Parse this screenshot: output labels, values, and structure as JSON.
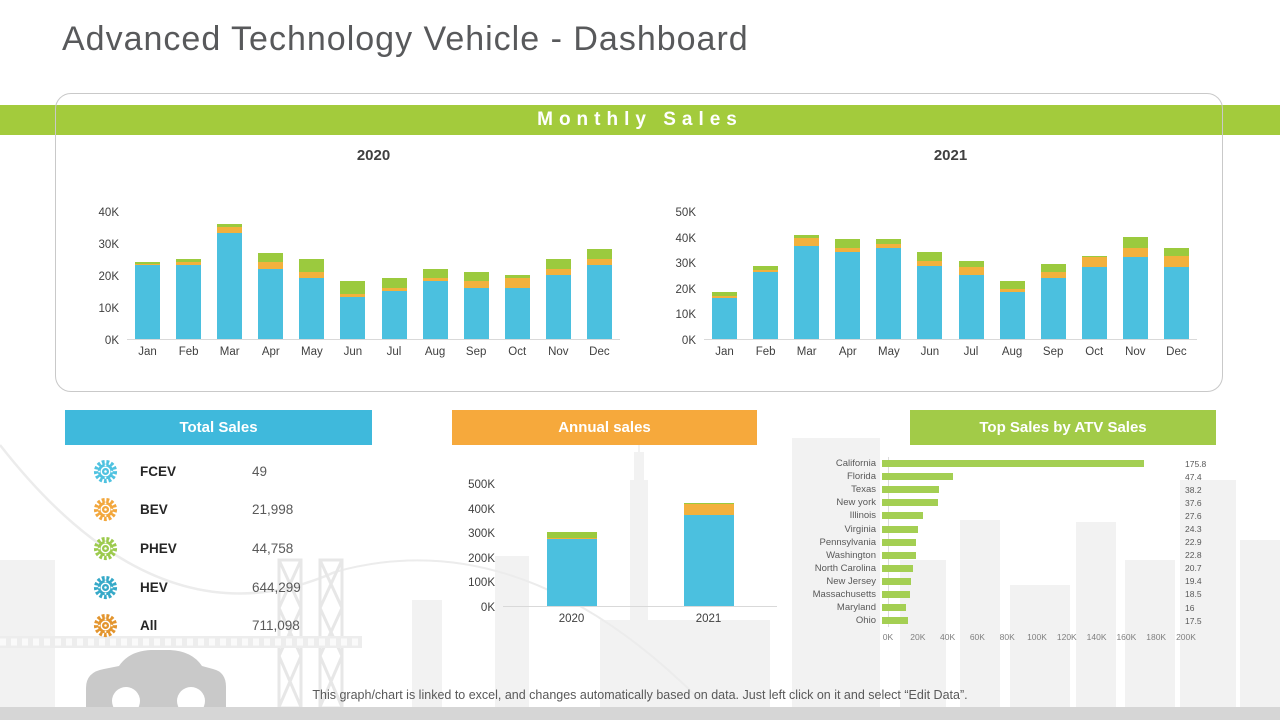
{
  "page": {
    "title": "Advanced Technology Vehicle - Dashboard",
    "footer": "This graph/chart is linked to excel, and changes automatically based on data. Just left click on it and select “Edit Data”."
  },
  "colors": {
    "band_green": "#a3cb3c",
    "header_blue": "#3fb9dc",
    "header_orange": "#f6a93c",
    "header_green": "#a2cb48",
    "bar_blue": "#4bc0df",
    "bar_orange": "#f2b13d",
    "bar_green": "#9bca3e",
    "hbar_green": "#a4cf53"
  },
  "monthly_panel": {
    "header": "Monthly Sales"
  },
  "total_panel": {
    "header": "Total Sales",
    "rows": [
      {
        "label": "FCEV",
        "value": "49",
        "icon": "wheel-icon",
        "color": "#4fc2e0"
      },
      {
        "label": "BEV",
        "value": "21,998",
        "icon": "wheel-icon",
        "color": "#f2a73d"
      },
      {
        "label": "PHEV",
        "value": "44,758",
        "icon": "wheel-icon",
        "color": "#9cca4d"
      },
      {
        "label": "HEV",
        "value": "644,299",
        "icon": "wheel-icon",
        "color": "#36a9c8"
      },
      {
        "label": "All",
        "value": "711,098",
        "icon": "wheel-icon",
        "color": "#e3952e"
      }
    ]
  },
  "annual_panel": {
    "header": "Annual sales"
  },
  "top_panel": {
    "header": "Top Sales by ATV Sales"
  },
  "chart_data": [
    {
      "id": "monthly-2020",
      "type": "bar",
      "stacked": true,
      "title": "2020",
      "unit": "thousands",
      "categories": [
        "Jan",
        "Feb",
        "Mar",
        "Apr",
        "May",
        "Jun",
        "Jul",
        "Aug",
        "Sep",
        "Oct",
        "Nov",
        "Dec"
      ],
      "series": [
        {
          "name": "blue",
          "color": "#4bc0df",
          "values": [
            23,
            23,
            33,
            22,
            19,
            13,
            15,
            18,
            16,
            16,
            20,
            23
          ]
        },
        {
          "name": "orange",
          "color": "#f2b13d",
          "values": [
            0.5,
            1,
            2,
            2,
            2,
            1,
            1,
            1,
            2,
            3,
            2,
            2
          ]
        },
        {
          "name": "green",
          "color": "#9bca3e",
          "values": [
            0.5,
            1,
            1,
            3,
            4,
            4,
            3,
            3,
            3,
            1,
            3,
            3
          ]
        }
      ],
      "yticks": [
        {
          "label": "0K",
          "value": 0
        },
        {
          "label": "10K",
          "value": 10
        },
        {
          "label": "20K",
          "value": 20
        },
        {
          "label": "30K",
          "value": 30
        },
        {
          "label": "40K",
          "value": 40
        }
      ],
      "ylim": [
        0,
        42
      ],
      "grid": false,
      "legend": "none"
    },
    {
      "id": "monthly-2021",
      "type": "bar",
      "stacked": true,
      "title": "2021",
      "unit": "thousands",
      "categories": [
        "Jan",
        "Feb",
        "Mar",
        "Apr",
        "May",
        "Jun",
        "Jul",
        "Aug",
        "Sep",
        "Oct",
        "Nov",
        "Dec"
      ],
      "series": [
        {
          "name": "blue",
          "color": "#4bc0df",
          "values": [
            16,
            26,
            36.5,
            34,
            35.5,
            28.5,
            25,
            18.5,
            24,
            28,
            32,
            28
          ]
        },
        {
          "name": "orange",
          "color": "#f2b13d",
          "values": [
            1,
            1,
            3,
            1.5,
            1.5,
            2,
            3,
            1,
            2,
            4,
            3.5,
            4.5
          ]
        },
        {
          "name": "green",
          "color": "#9bca3e",
          "values": [
            1.5,
            1.5,
            1,
            3.5,
            2,
            3.5,
            2.5,
            3,
            3.5,
            0.5,
            4.5,
            3
          ]
        }
      ],
      "yticks": [
        {
          "label": "0K",
          "value": 0
        },
        {
          "label": "10K",
          "value": 10
        },
        {
          "label": "20K",
          "value": 20
        },
        {
          "label": "30K",
          "value": 30
        },
        {
          "label": "40K",
          "value": 40
        },
        {
          "label": "50K",
          "value": 50
        }
      ],
      "ylim": [
        0,
        52
      ],
      "grid": false,
      "legend": "none"
    },
    {
      "id": "annual-sales",
      "type": "bar",
      "stacked": true,
      "title": "",
      "unit": "thousands",
      "categories": [
        "2020",
        "2021"
      ],
      "series": [
        {
          "name": "blue",
          "color": "#4bc0df",
          "values": [
            272,
            370
          ]
        },
        {
          "name": "orange",
          "color": "#f2b13d",
          "values": [
            5,
            45
          ]
        },
        {
          "name": "green",
          "color": "#9bca3e",
          "values": [
            24,
            5
          ]
        }
      ],
      "yticks": [
        {
          "label": "0K",
          "value": 0
        },
        {
          "label": "100K",
          "value": 100
        },
        {
          "label": "200K",
          "value": 200
        },
        {
          "label": "300K",
          "value": 300
        },
        {
          "label": "400K",
          "value": 400
        },
        {
          "label": "500K",
          "value": 500
        }
      ],
      "ylim": [
        0,
        520
      ],
      "grid": false,
      "legend": "none"
    },
    {
      "id": "top-sales-by-state",
      "type": "bar",
      "orientation": "horizontal",
      "title": "Top Sales by ATV Sales",
      "unit": "thousands",
      "color": "#a4cf53",
      "categories": [
        "California",
        "Florida",
        "Texas",
        "New york",
        "Illinois",
        "Virginia",
        "Pennsylvania",
        "Washington",
        "North Carolina",
        "New Jersey",
        "Massachusetts",
        "Maryland",
        "Ohio"
      ],
      "values": [
        175.8,
        47.4,
        38.2,
        37.6,
        27.6,
        24.3,
        22.9,
        22.8,
        20.7,
        19.4,
        18.5,
        16,
        17.5
      ],
      "value_labels": [
        "175.8",
        "47.4",
        "38.2",
        "37.6",
        "27.6",
        "24.3",
        "22.9",
        "22.8",
        "20.7",
        "19.4",
        "18.5",
        "16",
        "17.5"
      ],
      "xticks": [
        "0K",
        "20K",
        "40K",
        "60K",
        "80K",
        "100K",
        "120K",
        "140K",
        "160K",
        "180K",
        "200K"
      ],
      "xlim": [
        0,
        200
      ],
      "grid": false,
      "legend": "none"
    }
  ]
}
